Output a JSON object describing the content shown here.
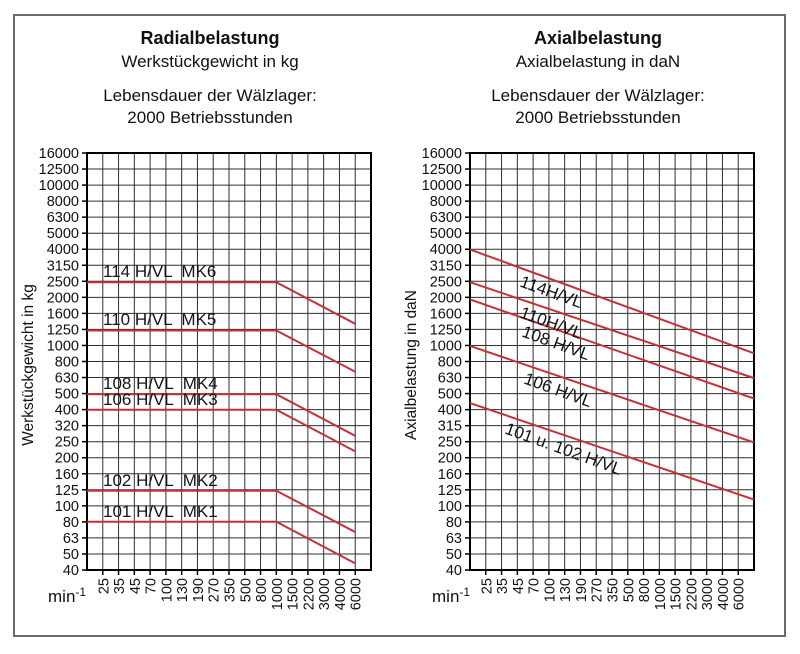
{
  "accent_color": "#c43238",
  "grid_color": "#2f2f2f",
  "chart_data": [
    {
      "type": "line",
      "title": "Radialbelastung",
      "subtitle": "Werkstückgewicht in kg",
      "note": [
        "Lebensdauer der Wälzlager:",
        "2000 Betriebsstunden"
      ],
      "ylabel": "Werkstückgewicht in kg",
      "xlabel_unit": {
        "base": "min",
        "exponent": "-1"
      },
      "x_scale": "log",
      "y_scale": "log",
      "grid": true,
      "x_ticks": [
        25,
        35,
        45,
        70,
        100,
        130,
        190,
        270,
        350,
        500,
        800,
        1000,
        1500,
        2200,
        3000,
        4000,
        6000
      ],
      "y_ticks": [
        16000,
        12500,
        10000,
        8000,
        6300,
        5000,
        4000,
        3150,
        2500,
        2000,
        1600,
        1250,
        1000,
        800,
        630,
        500,
        400,
        320,
        250,
        200,
        160,
        125,
        100,
        80,
        63,
        50,
        40
      ],
      "ylim": [
        40,
        16000
      ],
      "series": [
        {
          "label": "114 H/VL  MK6",
          "flat_value": 2500,
          "flat_until_rpm": 1000,
          "value_at_6000": 1375
        },
        {
          "label": "110 H/VL  MK5",
          "flat_value": 1250,
          "flat_until_rpm": 1000,
          "value_at_6000": 690
        },
        {
          "label": "108 H/VL  MK4",
          "flat_value": 500,
          "flat_until_rpm": 1000,
          "value_at_6000": 275
        },
        {
          "label": "106 H/VL  MK3",
          "flat_value": 400,
          "flat_until_rpm": 1000,
          "value_at_6000": 220
        },
        {
          "label": "102 H/VL  MK2",
          "flat_value": 125,
          "flat_until_rpm": 1000,
          "value_at_6000": 69
        },
        {
          "label": "101 H/VL  MK1",
          "flat_value": 80,
          "flat_until_rpm": 1000,
          "value_at_6000": 44
        }
      ]
    },
    {
      "type": "line",
      "title": "Axialbelastung",
      "subtitle": "Axialbelastung in daN",
      "note": [
        "Lebensdauer der Wälzlager:",
        "2000 Betriebsstunden"
      ],
      "ylabel": "Axialbelastung in daN",
      "xlabel_unit": {
        "base": "min",
        "exponent": "-1"
      },
      "x_scale": "log",
      "y_scale": "log",
      "grid": true,
      "x_ticks": [
        25,
        35,
        45,
        70,
        100,
        130,
        190,
        270,
        350,
        500,
        800,
        1000,
        1500,
        2200,
        3000,
        4000,
        6000
      ],
      "y_ticks": [
        16000,
        12500,
        10000,
        8000,
        6300,
        5000,
        4000,
        3150,
        2500,
        2000,
        1600,
        1250,
        1000,
        800,
        630,
        500,
        400,
        315,
        250,
        200,
        160,
        125,
        100,
        80,
        63,
        50,
        40
      ],
      "ylim": [
        40,
        16000
      ],
      "series": [
        {
          "label": "114H/VL",
          "value_at_left_edge": 4000,
          "value_at_right_edge": 900
        },
        {
          "label": "110H/VL",
          "value_at_left_edge": 2500,
          "value_at_right_edge": 630
        },
        {
          "label": "108 H/VL",
          "value_at_left_edge": 1950,
          "value_at_right_edge": 470
        },
        {
          "label": "106 H/VL",
          "value_at_left_edge": 1000,
          "value_at_right_edge": 250
        },
        {
          "label": "101 u. 102 H/VL",
          "value_at_left_edge": 440,
          "value_at_right_edge": 110
        }
      ]
    }
  ]
}
